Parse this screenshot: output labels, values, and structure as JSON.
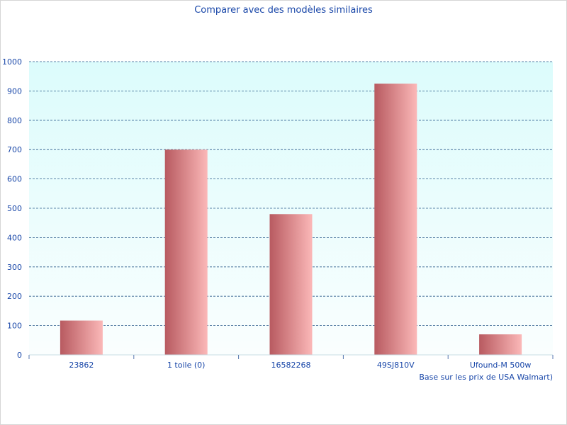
{
  "chart_data": {
    "type": "bar",
    "title": "Comparer avec des modèles similaires",
    "footnote": "Base sur les prix de USA Walmart)",
    "categories": [
      "23862",
      "1 toile (0)",
      "16582268",
      "49SJ810V",
      "Ufound-M 500w"
    ],
    "values": [
      117,
      700,
      480,
      925,
      70
    ],
    "ylim": [
      0,
      1000
    ],
    "yticks": [
      0,
      100,
      200,
      300,
      400,
      500,
      600,
      700,
      800,
      900,
      1000
    ],
    "grid": true,
    "legend": "none",
    "colors": {
      "bar_dark": "#b85a60",
      "bar_light": "#fbb8b8",
      "plot_bg_top": "#dcfcfc",
      "plot_bg_bottom": "#fafefe",
      "grid": "#2a5a8a",
      "text": "#1846a8",
      "axis": "#c8dce4"
    }
  }
}
